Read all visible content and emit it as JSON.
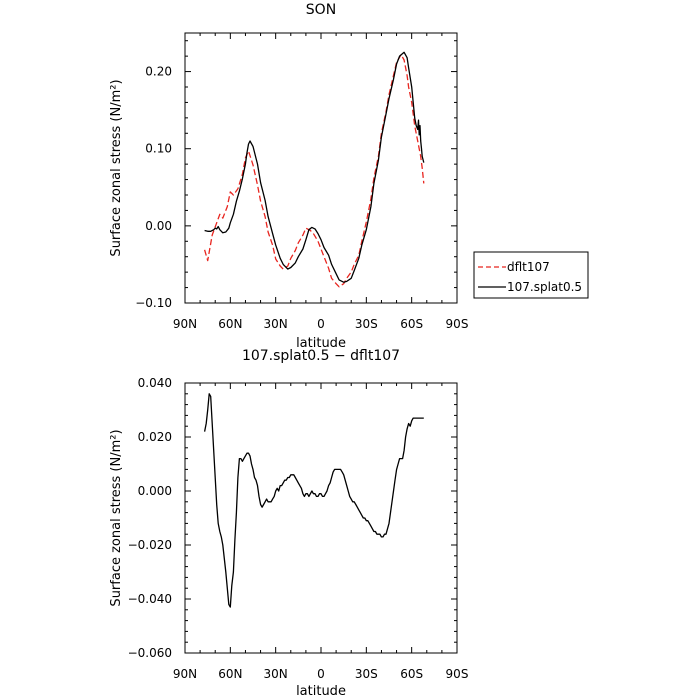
{
  "chart_data": [
    {
      "type": "line",
      "title": "SON",
      "xlabel": "latitude",
      "ylabel": "Surface zonal stress (N/m²)",
      "xlim": [
        90,
        -90
      ],
      "ylim": [
        -0.1,
        0.25
      ],
      "xticks": [
        90,
        60,
        30,
        0,
        -30,
        -60,
        -90
      ],
      "xtick_labels": [
        "90N",
        "60N",
        "30N",
        "0",
        "30S",
        "60S",
        "90S"
      ],
      "yticks": [
        -0.1,
        0.0,
        0.1,
        0.2
      ],
      "ytick_labels": [
        "−0.10",
        "0.00",
        "0.10",
        "0.20"
      ],
      "legend_position": "right",
      "series": [
        {
          "name": "dflt107",
          "color": "#e8251f",
          "dash": "dashed",
          "x": [
            77,
            75,
            72,
            69,
            67,
            65,
            62,
            60,
            58,
            55,
            52,
            50,
            48,
            45,
            42,
            40,
            37,
            35,
            32,
            30,
            27,
            25,
            22,
            20,
            17,
            15,
            12,
            10,
            7,
            5,
            2,
            0,
            -2,
            -5,
            -7,
            -10,
            -12,
            -15,
            -17,
            -20,
            -22,
            -25,
            -27,
            -30,
            -33,
            -35,
            -38,
            -40,
            -43,
            -45,
            -48,
            -50,
            -53,
            -55,
            -57,
            -58,
            -60,
            -62,
            -64,
            -65,
            -66,
            -67,
            -68
          ],
          "y": [
            -0.031,
            -0.045,
            -0.012,
            0.004,
            0.015,
            0.01,
            0.025,
            0.044,
            0.04,
            0.048,
            0.067,
            0.088,
            0.097,
            0.079,
            0.053,
            0.032,
            0.012,
            -0.008,
            -0.025,
            -0.043,
            -0.052,
            -0.056,
            -0.052,
            -0.042,
            -0.032,
            -0.022,
            -0.012,
            -0.003,
            -0.006,
            -0.01,
            -0.02,
            -0.03,
            -0.04,
            -0.055,
            -0.068,
            -0.075,
            -0.079,
            -0.075,
            -0.068,
            -0.06,
            -0.05,
            -0.038,
            -0.02,
            0.005,
            0.035,
            0.062,
            0.09,
            0.12,
            0.148,
            0.17,
            0.195,
            0.212,
            0.222,
            0.215,
            0.195,
            0.18,
            0.16,
            0.13,
            0.11,
            0.1,
            0.09,
            0.075,
            0.055
          ]
        },
        {
          "name": "107.splat0.5",
          "color": "#000000",
          "dash": "solid",
          "x": [
            77,
            75,
            73,
            71,
            70,
            69,
            68,
            67,
            65,
            63,
            61,
            60,
            58,
            56,
            54,
            52,
            50,
            49,
            48,
            47,
            45,
            42,
            40,
            37,
            35,
            32,
            30,
            27,
            25,
            22,
            20,
            17,
            15,
            12,
            10,
            8,
            6,
            4,
            2,
            0,
            -2,
            -5,
            -7,
            -10,
            -12,
            -15,
            -17,
            -20,
            -22,
            -25,
            -27,
            -30,
            -33,
            -35,
            -38,
            -40,
            -43,
            -45,
            -48,
            -50,
            -52,
            -55,
            -57,
            -58,
            -60,
            -61,
            -62,
            -63,
            -64,
            -64.5,
            -65,
            -65.5,
            -66,
            -66.5,
            -67,
            -68
          ],
          "y": [
            -0.006,
            -0.007,
            -0.007,
            -0.005,
            -0.003,
            -0.004,
            -0.001,
            -0.005,
            -0.009,
            -0.008,
            -0.003,
            0.004,
            0.015,
            0.032,
            0.045,
            0.061,
            0.08,
            0.095,
            0.106,
            0.11,
            0.103,
            0.08,
            0.056,
            0.033,
            0.012,
            -0.01,
            -0.025,
            -0.042,
            -0.05,
            -0.056,
            -0.054,
            -0.048,
            -0.04,
            -0.03,
            -0.018,
            -0.005,
            -0.002,
            -0.004,
            -0.01,
            -0.018,
            -0.028,
            -0.038,
            -0.05,
            -0.062,
            -0.07,
            -0.073,
            -0.072,
            -0.068,
            -0.058,
            -0.042,
            -0.025,
            -0.005,
            0.025,
            0.055,
            0.085,
            0.115,
            0.145,
            0.165,
            0.19,
            0.21,
            0.22,
            0.225,
            0.218,
            0.205,
            0.18,
            0.16,
            0.14,
            0.13,
            0.125,
            0.137,
            0.118,
            0.13,
            0.11,
            0.1,
            0.09,
            0.082
          ]
        }
      ]
    },
    {
      "type": "line",
      "title": "107.splat0.5 − dflt107",
      "xlabel": "latitude",
      "ylabel": "Surface zonal stress (N/m²)",
      "xlim": [
        90,
        -90
      ],
      "ylim": [
        -0.06,
        0.04
      ],
      "xticks": [
        90,
        60,
        30,
        0,
        -30,
        -60,
        -90
      ],
      "xtick_labels": [
        "90N",
        "60N",
        "30N",
        "0",
        "30S",
        "60S",
        "90S"
      ],
      "yticks": [
        -0.06,
        -0.04,
        -0.02,
        0.0,
        0.02,
        0.04
      ],
      "ytick_labels": [
        "−0.060",
        "−0.040",
        "−0.020",
        "0.000",
        "0.020",
        "0.040"
      ],
      "series": [
        {
          "color": "#000000",
          "dash": "solid",
          "x": [
            77,
            76,
            75,
            74,
            73,
            72,
            71,
            70,
            69,
            68,
            67,
            66,
            65,
            64,
            63,
            62,
            61,
            60,
            59,
            58,
            57,
            56,
            55,
            54,
            53,
            52,
            51,
            50,
            49,
            48,
            47,
            46,
            45,
            44,
            43,
            42,
            41,
            40,
            39,
            38,
            37,
            36,
            35,
            34,
            33,
            32,
            31,
            30,
            29,
            28,
            27,
            26,
            25,
            24,
            23,
            22,
            21,
            20,
            19,
            18,
            17,
            16,
            15,
            14,
            13,
            12,
            11,
            10,
            9,
            8,
            7,
            6,
            5,
            4,
            3,
            2,
            1,
            0,
            -1,
            -2,
            -3,
            -4,
            -5,
            -6,
            -7,
            -8,
            -9,
            -10,
            -11,
            -12,
            -13,
            -14,
            -15,
            -16,
            -17,
            -18,
            -19,
            -20,
            -21,
            -22,
            -23,
            -24,
            -25,
            -26,
            -27,
            -28,
            -29,
            -30,
            -31,
            -32,
            -33,
            -34,
            -35,
            -36,
            -37,
            -38,
            -39,
            -40,
            -41,
            -42,
            -43,
            -44,
            -45,
            -46,
            -47,
            -48,
            -49,
            -50,
            -51,
            -52,
            -53,
            -54,
            -55,
            -56,
            -57,
            -58,
            -59,
            -60,
            -61,
            -62,
            -63,
            -64,
            -65,
            -66,
            -67,
            -68
          ],
          "y": [
            0.022,
            0.025,
            0.03,
            0.036,
            0.035,
            0.025,
            0.015,
            0.005,
            -0.005,
            -0.012,
            -0.015,
            -0.017,
            -0.02,
            -0.025,
            -0.03,
            -0.036,
            -0.042,
            -0.043,
            -0.035,
            -0.03,
            -0.018,
            -0.008,
            0.005,
            0.012,
            0.012,
            0.011,
            0.012,
            0.013,
            0.014,
            0.014,
            0.013,
            0.01,
            0.008,
            0.005,
            0.004,
            0.002,
            -0.002,
            -0.005,
            -0.006,
            -0.005,
            -0.004,
            -0.003,
            -0.004,
            -0.004,
            -0.004,
            -0.003,
            -0.002,
            0.0,
            0.001,
            0.0,
            0.002,
            0.002,
            0.003,
            0.004,
            0.004,
            0.005,
            0.005,
            0.006,
            0.006,
            0.006,
            0.005,
            0.004,
            0.003,
            0.002,
            0.001,
            -0.001,
            -0.002,
            -0.001,
            -0.001,
            -0.002,
            -0.001,
            0.0,
            -0.001,
            -0.001,
            -0.002,
            -0.002,
            -0.001,
            -0.001,
            -0.002,
            -0.002,
            -0.001,
            0.0,
            0.002,
            0.003,
            0.005,
            0.007,
            0.008,
            0.008,
            0.008,
            0.008,
            0.008,
            0.007,
            0.006,
            0.004,
            0.002,
            0.0,
            -0.002,
            -0.003,
            -0.004,
            -0.004,
            -0.005,
            -0.006,
            -0.007,
            -0.008,
            -0.009,
            -0.01,
            -0.01,
            -0.011,
            -0.011,
            -0.012,
            -0.013,
            -0.014,
            -0.015,
            -0.015,
            -0.016,
            -0.016,
            -0.016,
            -0.017,
            -0.017,
            -0.016,
            -0.016,
            -0.014,
            -0.012,
            -0.008,
            -0.004,
            0.0,
            0.004,
            0.008,
            0.01,
            0.012,
            0.012,
            0.012,
            0.015,
            0.02,
            0.023,
            0.025,
            0.024,
            0.026,
            0.027,
            0.027,
            0.027,
            0.027,
            0.027,
            0.027,
            0.027,
            0.027
          ]
        }
      ]
    }
  ]
}
